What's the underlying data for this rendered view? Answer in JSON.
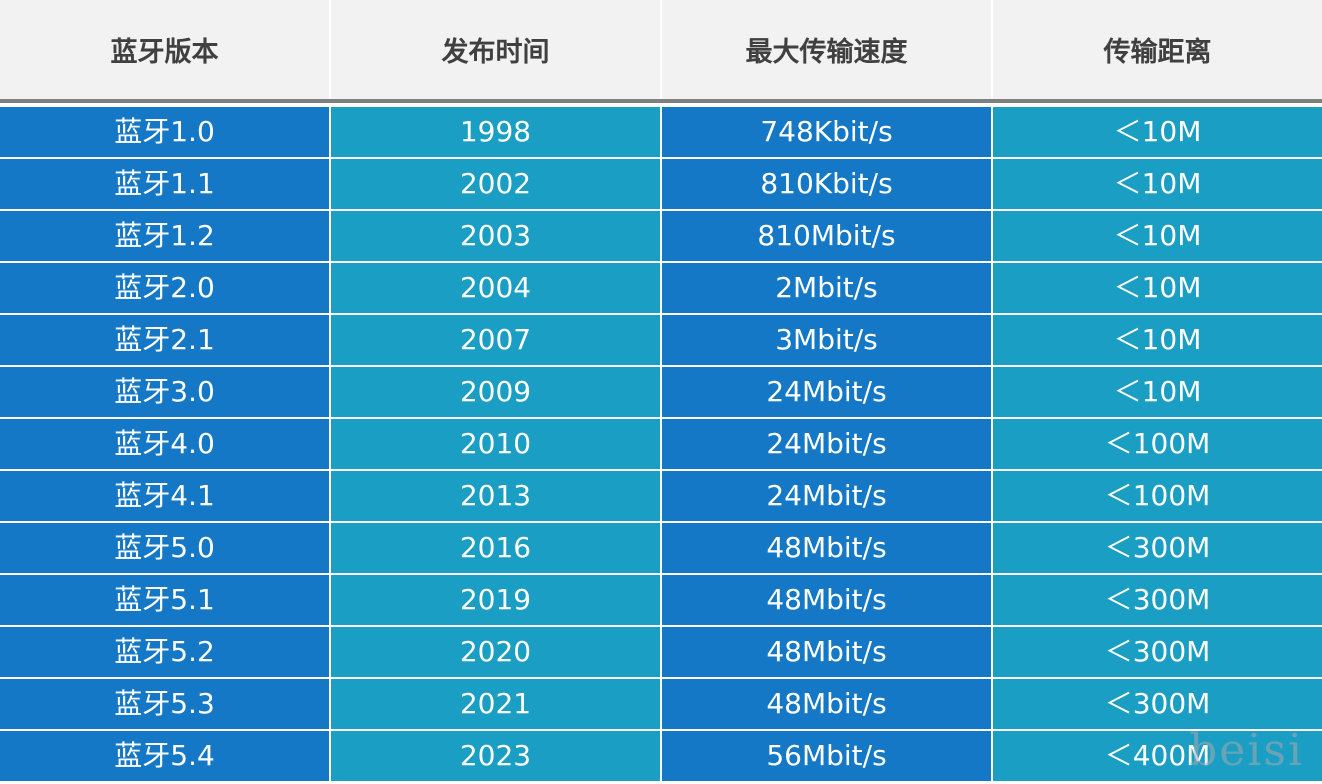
{
  "table": {
    "headers": [
      "蓝牙版本",
      "发布时间",
      "最大传输速度",
      "传输距离"
    ],
    "rows": [
      [
        "蓝牙1.0",
        "1998",
        "748Kbit/s",
        "＜10M"
      ],
      [
        "蓝牙1.1",
        "2002",
        "810Kbit/s",
        "＜10M"
      ],
      [
        "蓝牙1.2",
        "2003",
        "810Mbit/s",
        "＜10M"
      ],
      [
        "蓝牙2.0",
        "2004",
        "2Mbit/s",
        "＜10M"
      ],
      [
        "蓝牙2.1",
        "2007",
        "3Mbit/s",
        "＜10M"
      ],
      [
        "蓝牙3.0",
        "2009",
        "24Mbit/s",
        "＜10M"
      ],
      [
        "蓝牙4.0",
        "2010",
        "24Mbit/s",
        "＜100M"
      ],
      [
        "蓝牙4.1",
        "2013",
        "24Mbit/s",
        "＜100M"
      ],
      [
        "蓝牙5.0",
        "2016",
        "48Mbit/s",
        "＜300M"
      ],
      [
        "蓝牙5.1",
        "2019",
        "48Mbit/s",
        "＜300M"
      ],
      [
        "蓝牙5.2",
        "2020",
        "48Mbit/s",
        "＜300M"
      ],
      [
        "蓝牙5.3",
        "2021",
        "48Mbit/s",
        "＜300M"
      ],
      [
        "蓝牙5.4",
        "2023",
        "56Mbit/s",
        "＜400M"
      ]
    ]
  },
  "watermark": "beisi",
  "colors": {
    "header_bg": "#f2f2f2",
    "header_text": "#404040",
    "header_divider": "#7f7f7f",
    "dark_cell": "#1578c7",
    "light_cell": "#1a9ec4",
    "cell_text": "#ffffff"
  }
}
